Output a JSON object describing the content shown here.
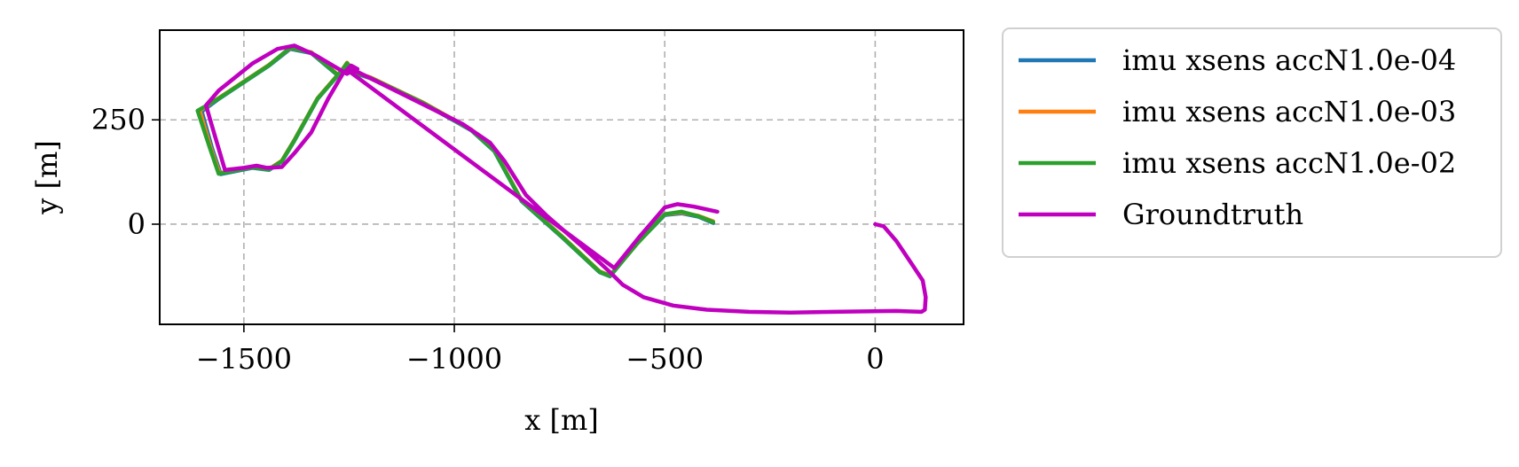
{
  "chart_data": {
    "type": "line",
    "title": "",
    "xlabel": "x [m]",
    "ylabel": "y [m]",
    "xlim": [
      -1700,
      210
    ],
    "ylim": [
      -240,
      465
    ],
    "xticks": [
      -1500,
      -1000,
      -500,
      0
    ],
    "xtick_labels": [
      "−1500",
      "−1000",
      "−500",
      "0"
    ],
    "yticks": [
      0,
      250
    ],
    "ytick_labels": [
      "0",
      "250"
    ],
    "grid": true,
    "legend_position": "outside-right",
    "series": [
      {
        "name": "imu xsens accN1.0e-04",
        "color": "#1f77b4",
        "points": [
          [
            -385,
            3
          ],
          [
            -420,
            18
          ],
          [
            -460,
            26
          ],
          [
            -500,
            22
          ],
          [
            -565,
            -45
          ],
          [
            -630,
            -125
          ],
          [
            -655,
            -115
          ],
          [
            -740,
            -35
          ],
          [
            -840,
            55
          ],
          [
            -905,
            175
          ],
          [
            -960,
            225
          ],
          [
            -1075,
            290
          ],
          [
            -1200,
            350
          ],
          [
            -1260,
            370
          ],
          [
            -1275,
            355
          ],
          [
            -1340,
            410
          ],
          [
            -1390,
            420
          ],
          [
            -1440,
            380
          ],
          [
            -1560,
            300
          ],
          [
            -1600,
            270
          ],
          [
            -1575,
            180
          ],
          [
            -1555,
            120
          ],
          [
            -1480,
            135
          ],
          [
            -1440,
            130
          ],
          [
            -1410,
            150
          ],
          [
            -1380,
            200
          ],
          [
            -1325,
            300
          ],
          [
            -1265,
            370
          ],
          [
            -1255,
            385
          ],
          [
            -1240,
            365
          ]
        ]
      },
      {
        "name": "imu xsens accN1.0e-03",
        "color": "#ff7f0e",
        "points": [
          [
            -385,
            7
          ],
          [
            -420,
            20
          ],
          [
            -460,
            28
          ],
          [
            -500,
            24
          ],
          [
            -565,
            -45
          ],
          [
            -630,
            -123
          ],
          [
            -655,
            -113
          ],
          [
            -740,
            -33
          ],
          [
            -840,
            57
          ],
          [
            -905,
            177
          ],
          [
            -960,
            227
          ],
          [
            -1075,
            292
          ],
          [
            -1200,
            352
          ],
          [
            -1260,
            372
          ],
          [
            -1275,
            357
          ],
          [
            -1340,
            412
          ],
          [
            -1390,
            422
          ],
          [
            -1440,
            382
          ],
          [
            -1560,
            302
          ],
          [
            -1605,
            272
          ],
          [
            -1578,
            180
          ],
          [
            -1558,
            122
          ],
          [
            -1480,
            137
          ],
          [
            -1440,
            132
          ],
          [
            -1410,
            152
          ],
          [
            -1380,
            202
          ],
          [
            -1325,
            302
          ],
          [
            -1265,
            372
          ],
          [
            -1255,
            387
          ],
          [
            -1240,
            367
          ]
        ]
      },
      {
        "name": "imu xsens accN1.0e-02",
        "color": "#2ca02c",
        "points": [
          [
            -385,
            5
          ],
          [
            -420,
            19
          ],
          [
            -460,
            30
          ],
          [
            -500,
            24
          ],
          [
            -565,
            -46
          ],
          [
            -630,
            -124
          ],
          [
            -655,
            -114
          ],
          [
            -740,
            -34
          ],
          [
            -840,
            56
          ],
          [
            -905,
            176
          ],
          [
            -960,
            226
          ],
          [
            -1075,
            291
          ],
          [
            -1200,
            351
          ],
          [
            -1260,
            371
          ],
          [
            -1275,
            356
          ],
          [
            -1340,
            411
          ],
          [
            -1390,
            423
          ],
          [
            -1440,
            381
          ],
          [
            -1560,
            301
          ],
          [
            -1610,
            272
          ],
          [
            -1580,
            180
          ],
          [
            -1560,
            121
          ],
          [
            -1480,
            136
          ],
          [
            -1440,
            131
          ],
          [
            -1410,
            151
          ],
          [
            -1380,
            201
          ],
          [
            -1325,
            301
          ],
          [
            -1265,
            371
          ],
          [
            -1255,
            386
          ],
          [
            -1240,
            366
          ]
        ]
      },
      {
        "name": "Groundtruth",
        "color": "#bf00bf",
        "points": [
          [
            0,
            0
          ],
          [
            20,
            -5
          ],
          [
            50,
            -40
          ],
          [
            90,
            -100
          ],
          [
            113,
            -135
          ],
          [
            120,
            -175
          ],
          [
            118,
            -205
          ],
          [
            110,
            -210
          ],
          [
            50,
            -208
          ],
          [
            -100,
            -210
          ],
          [
            -200,
            -212
          ],
          [
            -300,
            -210
          ],
          [
            -400,
            -205
          ],
          [
            -480,
            -195
          ],
          [
            -550,
            -175
          ],
          [
            -600,
            -145
          ],
          [
            -630,
            -115
          ],
          [
            -700,
            -50
          ],
          [
            -780,
            20
          ],
          [
            -830,
            70
          ],
          [
            -880,
            150
          ],
          [
            -915,
            195
          ],
          [
            -980,
            240
          ],
          [
            -1100,
            300
          ],
          [
            -1200,
            350
          ],
          [
            -1240,
            370
          ],
          [
            -1255,
            360
          ],
          [
            -1330,
            405
          ],
          [
            -1380,
            428
          ],
          [
            -1420,
            420
          ],
          [
            -1480,
            385
          ],
          [
            -1560,
            320
          ],
          [
            -1590,
            285
          ],
          [
            -1580,
            250
          ],
          [
            -1545,
            130
          ],
          [
            -1500,
            135
          ],
          [
            -1470,
            140
          ],
          [
            -1445,
            135
          ],
          [
            -1410,
            137
          ],
          [
            -1380,
            170
          ],
          [
            -1340,
            220
          ],
          [
            -1300,
            300
          ],
          [
            -1265,
            360
          ],
          [
            -1245,
            380
          ],
          [
            -1230,
            372
          ],
          [
            -1240,
            360
          ],
          [
            -1255,
            370
          ],
          [
            -620,
            -105
          ],
          [
            -560,
            -30
          ],
          [
            -500,
            40
          ],
          [
            -470,
            48
          ],
          [
            -430,
            42
          ],
          [
            -375,
            30
          ]
        ]
      }
    ]
  }
}
